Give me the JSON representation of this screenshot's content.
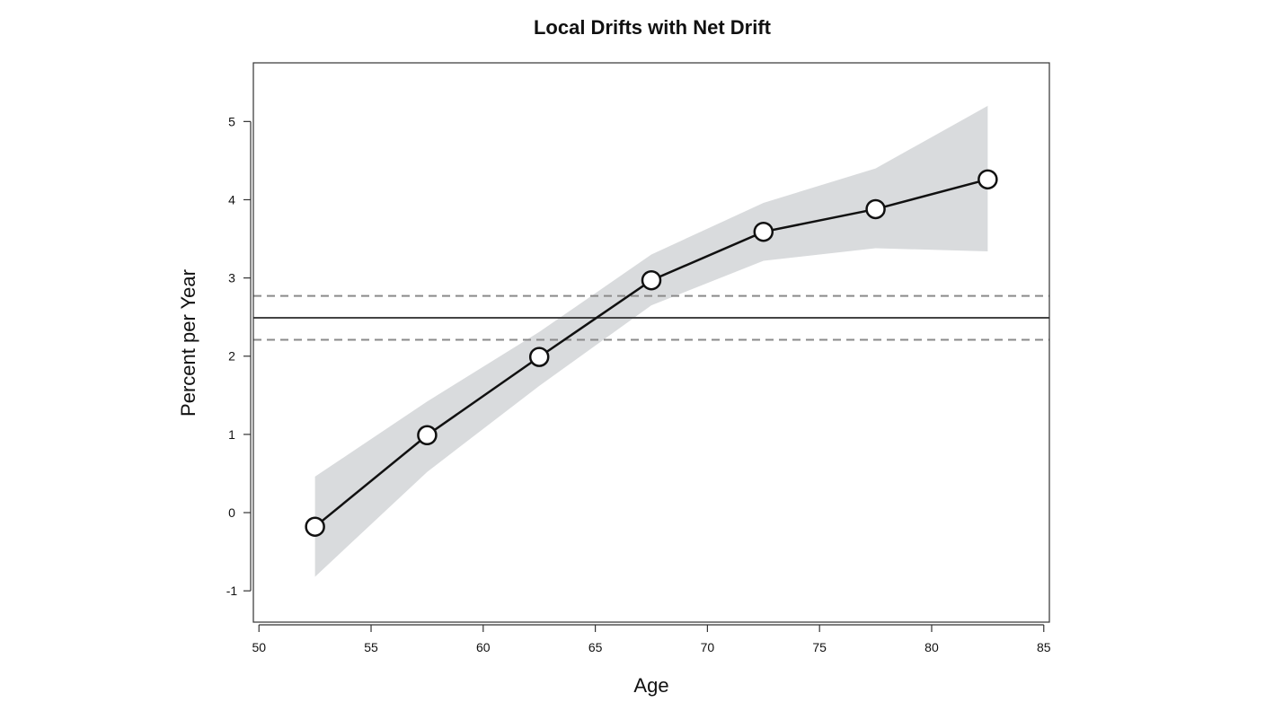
{
  "chart_data": {
    "type": "line",
    "title": "Local Drifts with Net Drift",
    "xlabel": "Age",
    "ylabel": "Percent per Year",
    "xlim": [
      49.75,
      85.25
    ],
    "ylim": [
      -1.4,
      5.75
    ],
    "x_ticks": [
      50,
      55,
      60,
      65,
      70,
      75,
      80,
      85
    ],
    "y_ticks": [
      -1,
      0,
      1,
      2,
      3,
      4,
      5
    ],
    "grid": false,
    "series": [
      {
        "x": [
          52.5,
          57.5,
          62.5,
          67.5,
          72.5,
          77.5,
          82.5
        ],
        "values": [
          -0.18,
          0.99,
          1.99,
          2.97,
          3.59,
          3.88,
          4.26
        ],
        "ci_lower": [
          -0.82,
          0.52,
          1.62,
          2.65,
          3.22,
          3.38,
          3.34
        ],
        "ci_upper": [
          0.46,
          1.42,
          2.31,
          3.3,
          3.96,
          4.4,
          5.2
        ]
      }
    ],
    "net_drift": {
      "value": 2.49,
      "ci_lower": 2.21,
      "ci_upper": 2.77
    },
    "colors": {
      "line": "#111111",
      "band": "#d9dbdd",
      "net_line": "#444444",
      "net_ci": "#8a8a8a",
      "marker_fill": "#ffffff"
    }
  }
}
